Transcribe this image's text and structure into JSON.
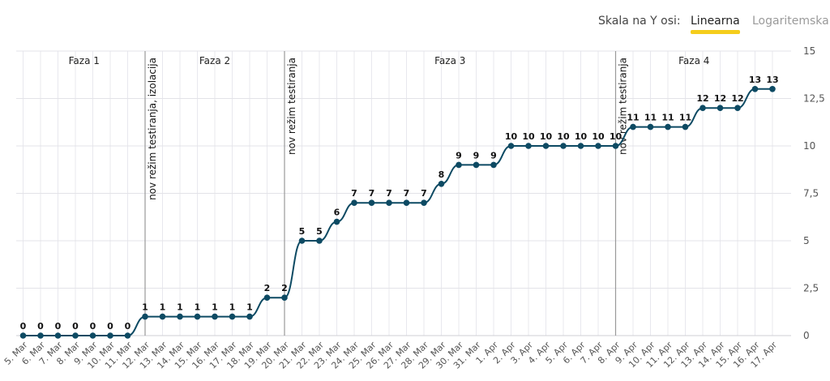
{
  "controls": {
    "scale_label": "Skala na Y osi:",
    "options": [
      "Linearna",
      "Logaritemska"
    ],
    "selected": "Linearna",
    "accent_color": "#f5cd1c"
  },
  "chart_data": {
    "type": "line",
    "title": "",
    "xlabel": "",
    "ylabel": "",
    "ylim": [
      0,
      15
    ],
    "yticks": [
      "0",
      "2,5",
      "5",
      "7,5",
      "10",
      "12,5",
      "15"
    ],
    "grid": true,
    "line_color": "#0d4a63",
    "categories": [
      "5. Mar",
      "6. Mar",
      "7. Mar",
      "8. Mar",
      "9. Mar",
      "10. Mar",
      "11. Mar",
      "12. Mar",
      "13. Mar",
      "14. Mar",
      "15. Mar",
      "16. Mar",
      "17. Mar",
      "18. Mar",
      "19. Mar",
      "20. Mar",
      "21. Mar",
      "22. Mar",
      "23. Mar",
      "24. Mar",
      "25. Mar",
      "26. Mar",
      "27. Mar",
      "28. Mar",
      "29. Mar",
      "30. Mar",
      "31. Mar",
      "1. Apr",
      "2. Apr",
      "3. Apr",
      "4. Apr",
      "5. Apr",
      "6. Apr",
      "7. Apr",
      "8. Apr",
      "9. Apr",
      "10. Apr",
      "11. Apr",
      "12. Apr",
      "13. Apr",
      "14. Apr",
      "15. Apr",
      "16. Apr",
      "17. Apr"
    ],
    "values": [
      0,
      0,
      0,
      0,
      0,
      0,
      0,
      1,
      1,
      1,
      1,
      1,
      1,
      1,
      2,
      2,
      5,
      5,
      6,
      7,
      7,
      7,
      7,
      7,
      8,
      9,
      9,
      9,
      10,
      10,
      10,
      10,
      10,
      10,
      10,
      11,
      11,
      11,
      11,
      12,
      12,
      12,
      13,
      13
    ],
    "phases": [
      {
        "label": "Faza 1",
        "start": "5. Mar",
        "end": "12. Mar"
      },
      {
        "label": "Faza 2",
        "start": "12. Mar",
        "end": "20. Mar"
      },
      {
        "label": "Faza 3",
        "start": "20. Mar",
        "end": "8. Apr"
      },
      {
        "label": "Faza 4",
        "start": "8. Apr",
        "end": "17. Apr"
      }
    ],
    "annotations": [
      {
        "at": "12. Mar",
        "text": "nov režim testiranja, izolacija"
      },
      {
        "at": "20. Mar",
        "text": "nov režim testiranja"
      },
      {
        "at": "8. Apr",
        "text": "nov režim testiranja"
      }
    ]
  }
}
